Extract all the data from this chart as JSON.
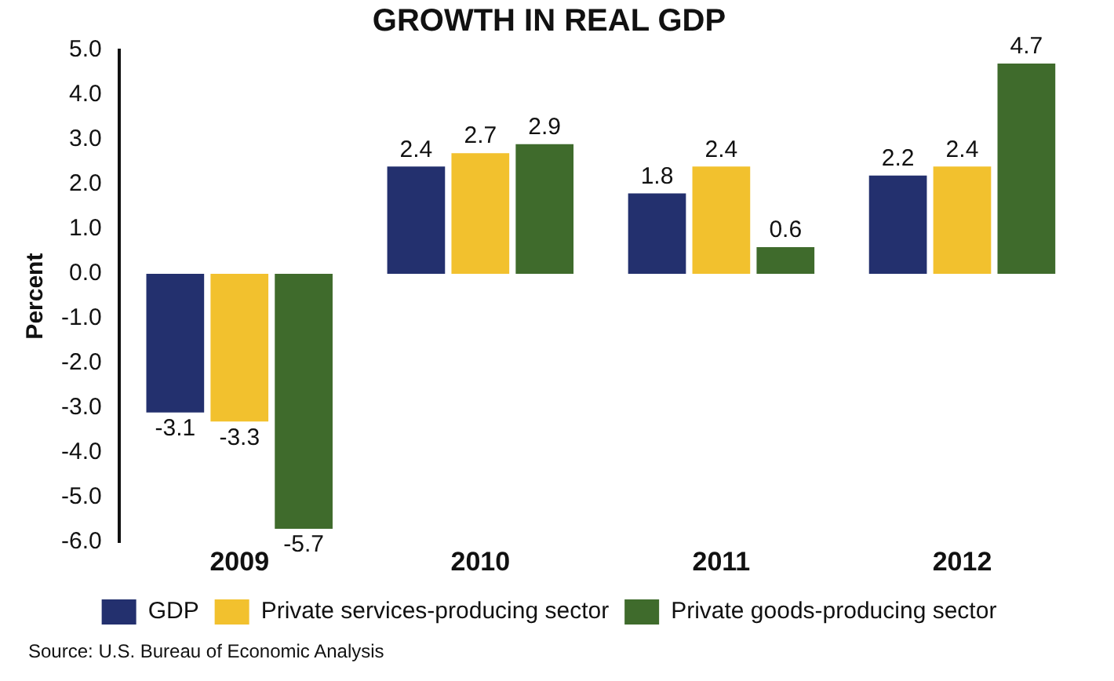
{
  "chart_data": {
    "type": "bar",
    "title": "GROWTH IN REAL GDP",
    "ylabel": "Percent",
    "categories": [
      "2009",
      "2010",
      "2011",
      "2012"
    ],
    "series": [
      {
        "name": "GDP",
        "color": "#23306e",
        "values": [
          -3.1,
          2.4,
          1.8,
          2.2
        ]
      },
      {
        "name": "Private services-producing sector",
        "color": "#f2c12e",
        "values": [
          -3.3,
          2.7,
          2.4,
          2.4
        ]
      },
      {
        "name": "Private goods-producing sector",
        "color": "#3f6b2c",
        "values": [
          -5.7,
          2.9,
          0.6,
          4.7
        ]
      }
    ],
    "ylim": [
      -6,
      5
    ],
    "yticks": [
      {
        "value": 5,
        "label": "5.0"
      },
      {
        "value": 4,
        "label": "4.0"
      },
      {
        "value": 3,
        "label": "3.0"
      },
      {
        "value": 2,
        "label": "2.0"
      },
      {
        "value": 1,
        "label": "1.0"
      },
      {
        "value": 0,
        "label": "0.0"
      },
      {
        "value": -1,
        "label": "-1.0"
      },
      {
        "value": -2,
        "label": "-2.0"
      },
      {
        "value": -3,
        "label": "-3.0"
      },
      {
        "value": -4,
        "label": "-4.0"
      },
      {
        "value": -5,
        "label": "-5.0"
      },
      {
        "value": -6,
        "label": "-6.0"
      }
    ],
    "data_labels": true,
    "grid": false,
    "legend": "bottom",
    "annotations": [
      "Source: U.S. Bureau of Economic Analysis"
    ]
  }
}
